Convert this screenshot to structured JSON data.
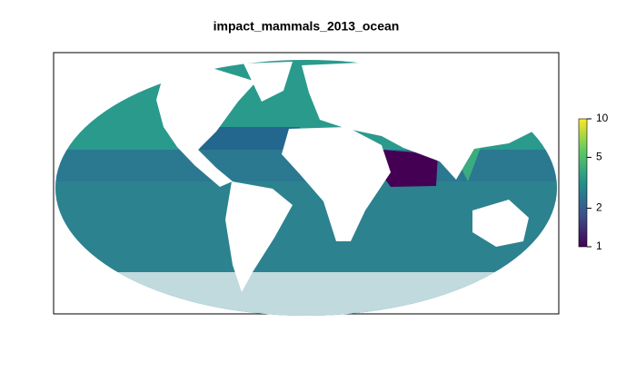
{
  "title": "impact_mammals_2013_ocean",
  "colorbar": {
    "lim": [
      1,
      10
    ],
    "ticks": [
      1,
      2,
      5,
      10
    ],
    "log": true,
    "colors": [
      "#440154",
      "#3b528b",
      "#21908c",
      "#5dc963",
      "#fde725"
    ]
  }
}
